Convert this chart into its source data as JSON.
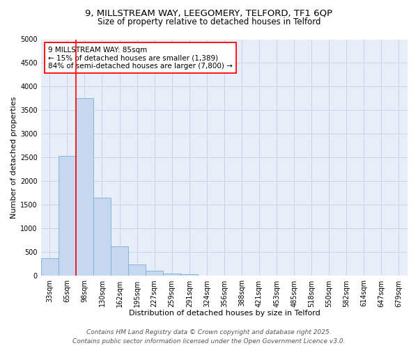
{
  "title_line1": "9, MILLSTREAM WAY, LEEGOMERY, TELFORD, TF1 6QP",
  "title_line2": "Size of property relative to detached houses in Telford",
  "xlabel": "Distribution of detached houses by size in Telford",
  "ylabel": "Number of detached properties",
  "bar_labels": [
    "33sqm",
    "65sqm",
    "98sqm",
    "130sqm",
    "162sqm",
    "195sqm",
    "227sqm",
    "259sqm",
    "291sqm",
    "324sqm",
    "356sqm",
    "388sqm",
    "421sqm",
    "453sqm",
    "485sqm",
    "518sqm",
    "550sqm",
    "582sqm",
    "614sqm",
    "647sqm",
    "679sqm"
  ],
  "bar_values": [
    380,
    2530,
    3750,
    1650,
    620,
    235,
    105,
    45,
    30,
    0,
    0,
    0,
    0,
    0,
    0,
    0,
    0,
    0,
    0,
    0,
    0
  ],
  "bar_color": "#c5d8f0",
  "bar_edge_color": "#7aaed6",
  "vline_x": 1.5,
  "vline_color": "red",
  "vline_linewidth": 1.2,
  "annotation_text": "9 MILLSTREAM WAY: 85sqm\n← 15% of detached houses are smaller (1,389)\n84% of semi-detached houses are larger (7,800) →",
  "annotation_box_color": "white",
  "annotation_box_edgecolor": "red",
  "ylim": [
    0,
    5000
  ],
  "yticks": [
    0,
    500,
    1000,
    1500,
    2000,
    2500,
    3000,
    3500,
    4000,
    4500,
    5000
  ],
  "grid_color": "#c8d4e8",
  "background_color": "#e8eef8",
  "footer_line1": "Contains HM Land Registry data © Crown copyright and database right 2025.",
  "footer_line2": "Contains public sector information licensed under the Open Government Licence v3.0.",
  "title_fontsize": 9.5,
  "subtitle_fontsize": 8.5,
  "axis_label_fontsize": 8,
  "tick_label_fontsize": 7,
  "annotation_fontsize": 7.5,
  "footer_fontsize": 6.5
}
